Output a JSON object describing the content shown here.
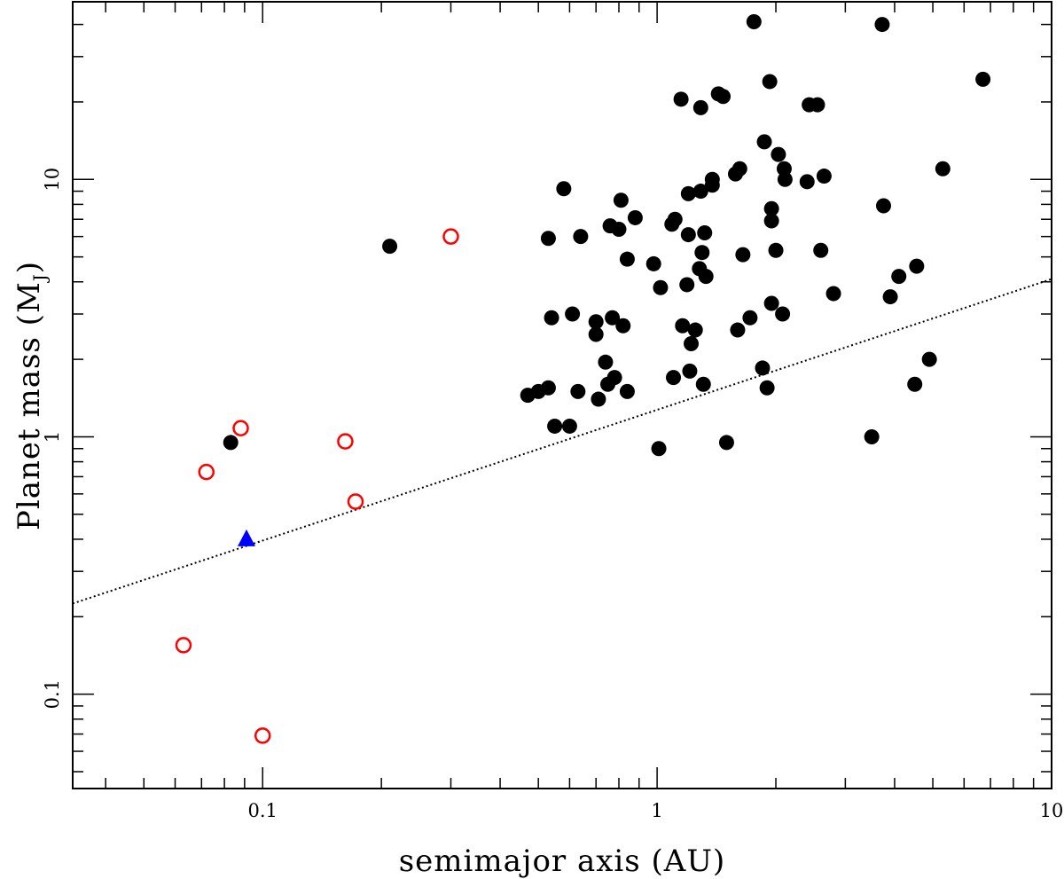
{
  "chart_data": {
    "type": "scatter",
    "xlabel": "semimajor axis (AU)",
    "ylabel_main": "Planet mass (M",
    "ylabel_sub": "J",
    "ylabel_close": ")",
    "xscale": "log",
    "yscale": "log",
    "xlim": [
      0.033,
      10
    ],
    "ylim": [
      0.043,
      49
    ],
    "x_tick_labels": [
      {
        "value": 0.1,
        "label": "0.1"
      },
      {
        "value": 1,
        "label": "1"
      },
      {
        "value": 10,
        "label": "10"
      }
    ],
    "y_tick_labels": [
      {
        "value": 0.1,
        "label": "0.1"
      },
      {
        "value": 1,
        "label": "1"
      },
      {
        "value": 10,
        "label": "10"
      }
    ],
    "grid": false,
    "legend": "none",
    "series": [
      {
        "marker": "filled-circle",
        "color": "#000000",
        "points": [
          [
            0.083,
            0.95
          ],
          [
            0.21,
            5.5
          ],
          [
            0.47,
            1.45
          ],
          [
            0.5,
            1.5
          ],
          [
            0.53,
            1.55
          ],
          [
            0.53,
            5.9
          ],
          [
            0.54,
            2.9
          ],
          [
            0.55,
            1.1
          ],
          [
            0.58,
            9.2
          ],
          [
            0.6,
            1.1
          ],
          [
            0.61,
            3.0
          ],
          [
            0.63,
            1.5
          ],
          [
            0.64,
            6.0
          ],
          [
            0.7,
            2.8
          ],
          [
            0.7,
            2.5
          ],
          [
            0.71,
            1.4
          ],
          [
            0.74,
            1.95
          ],
          [
            0.75,
            1.6
          ],
          [
            0.76,
            6.6
          ],
          [
            0.77,
            2.9
          ],
          [
            0.78,
            1.7
          ],
          [
            0.8,
            6.4
          ],
          [
            0.81,
            8.3
          ],
          [
            0.82,
            2.7
          ],
          [
            0.84,
            4.9
          ],
          [
            0.84,
            1.5
          ],
          [
            0.88,
            7.1
          ],
          [
            0.98,
            4.7
          ],
          [
            1.01,
            0.9
          ],
          [
            1.02,
            3.8
          ],
          [
            1.09,
            6.7
          ],
          [
            1.1,
            1.7
          ],
          [
            1.11,
            7.0
          ],
          [
            1.15,
            20.5
          ],
          [
            1.16,
            2.7
          ],
          [
            1.19,
            3.9
          ],
          [
            1.2,
            8.8
          ],
          [
            1.2,
            6.1
          ],
          [
            1.21,
            1.8
          ],
          [
            1.22,
            2.3
          ],
          [
            1.25,
            2.6
          ],
          [
            1.28,
            4.5
          ],
          [
            1.29,
            19.0
          ],
          [
            1.29,
            9.0
          ],
          [
            1.3,
            5.2
          ],
          [
            1.31,
            1.6
          ],
          [
            1.32,
            6.2
          ],
          [
            1.33,
            4.2
          ],
          [
            1.38,
            9.5
          ],
          [
            1.38,
            10.0
          ],
          [
            1.43,
            21.5
          ],
          [
            1.47,
            21.0
          ],
          [
            1.5,
            0.95
          ],
          [
            1.58,
            10.5
          ],
          [
            1.6,
            2.6
          ],
          [
            1.62,
            11.0
          ],
          [
            1.65,
            5.1
          ],
          [
            1.72,
            2.9
          ],
          [
            1.76,
            41.0
          ],
          [
            1.85,
            1.85
          ],
          [
            1.87,
            14.0
          ],
          [
            1.9,
            1.55
          ],
          [
            1.93,
            24.0
          ],
          [
            1.95,
            7.7
          ],
          [
            1.95,
            6.9
          ],
          [
            1.95,
            3.3
          ],
          [
            2.0,
            5.3
          ],
          [
            2.03,
            12.5
          ],
          [
            2.08,
            3.0
          ],
          [
            2.1,
            11.0
          ],
          [
            2.11,
            10.0
          ],
          [
            2.4,
            9.8
          ],
          [
            2.43,
            19.5
          ],
          [
            2.55,
            19.5
          ],
          [
            2.6,
            5.3
          ],
          [
            2.65,
            10.3
          ],
          [
            2.8,
            3.6
          ],
          [
            3.5,
            1.0
          ],
          [
            3.72,
            40.0
          ],
          [
            3.75,
            7.9
          ],
          [
            3.9,
            3.5
          ],
          [
            4.1,
            4.2
          ],
          [
            4.5,
            1.6
          ],
          [
            4.55,
            4.6
          ],
          [
            4.9,
            2.0
          ],
          [
            5.3,
            11.0
          ],
          [
            6.7,
            24.5
          ]
        ]
      },
      {
        "marker": "open-circle",
        "color": "#ff0000",
        "points": [
          [
            0.063,
            0.155
          ],
          [
            0.072,
            0.73
          ],
          [
            0.088,
            1.08
          ],
          [
            0.1,
            0.069
          ],
          [
            0.162,
            0.96
          ],
          [
            0.172,
            0.56
          ],
          [
            0.3,
            6.0
          ]
        ]
      },
      {
        "marker": "filled-triangle",
        "color": "#0000ff",
        "points": [
          [
            0.091,
            0.4
          ]
        ]
      }
    ],
    "reference_line": {
      "style": "dotted",
      "color": "#000000",
      "from": [
        0.033,
        0.225
      ],
      "to": [
        10,
        4.1
      ]
    }
  }
}
